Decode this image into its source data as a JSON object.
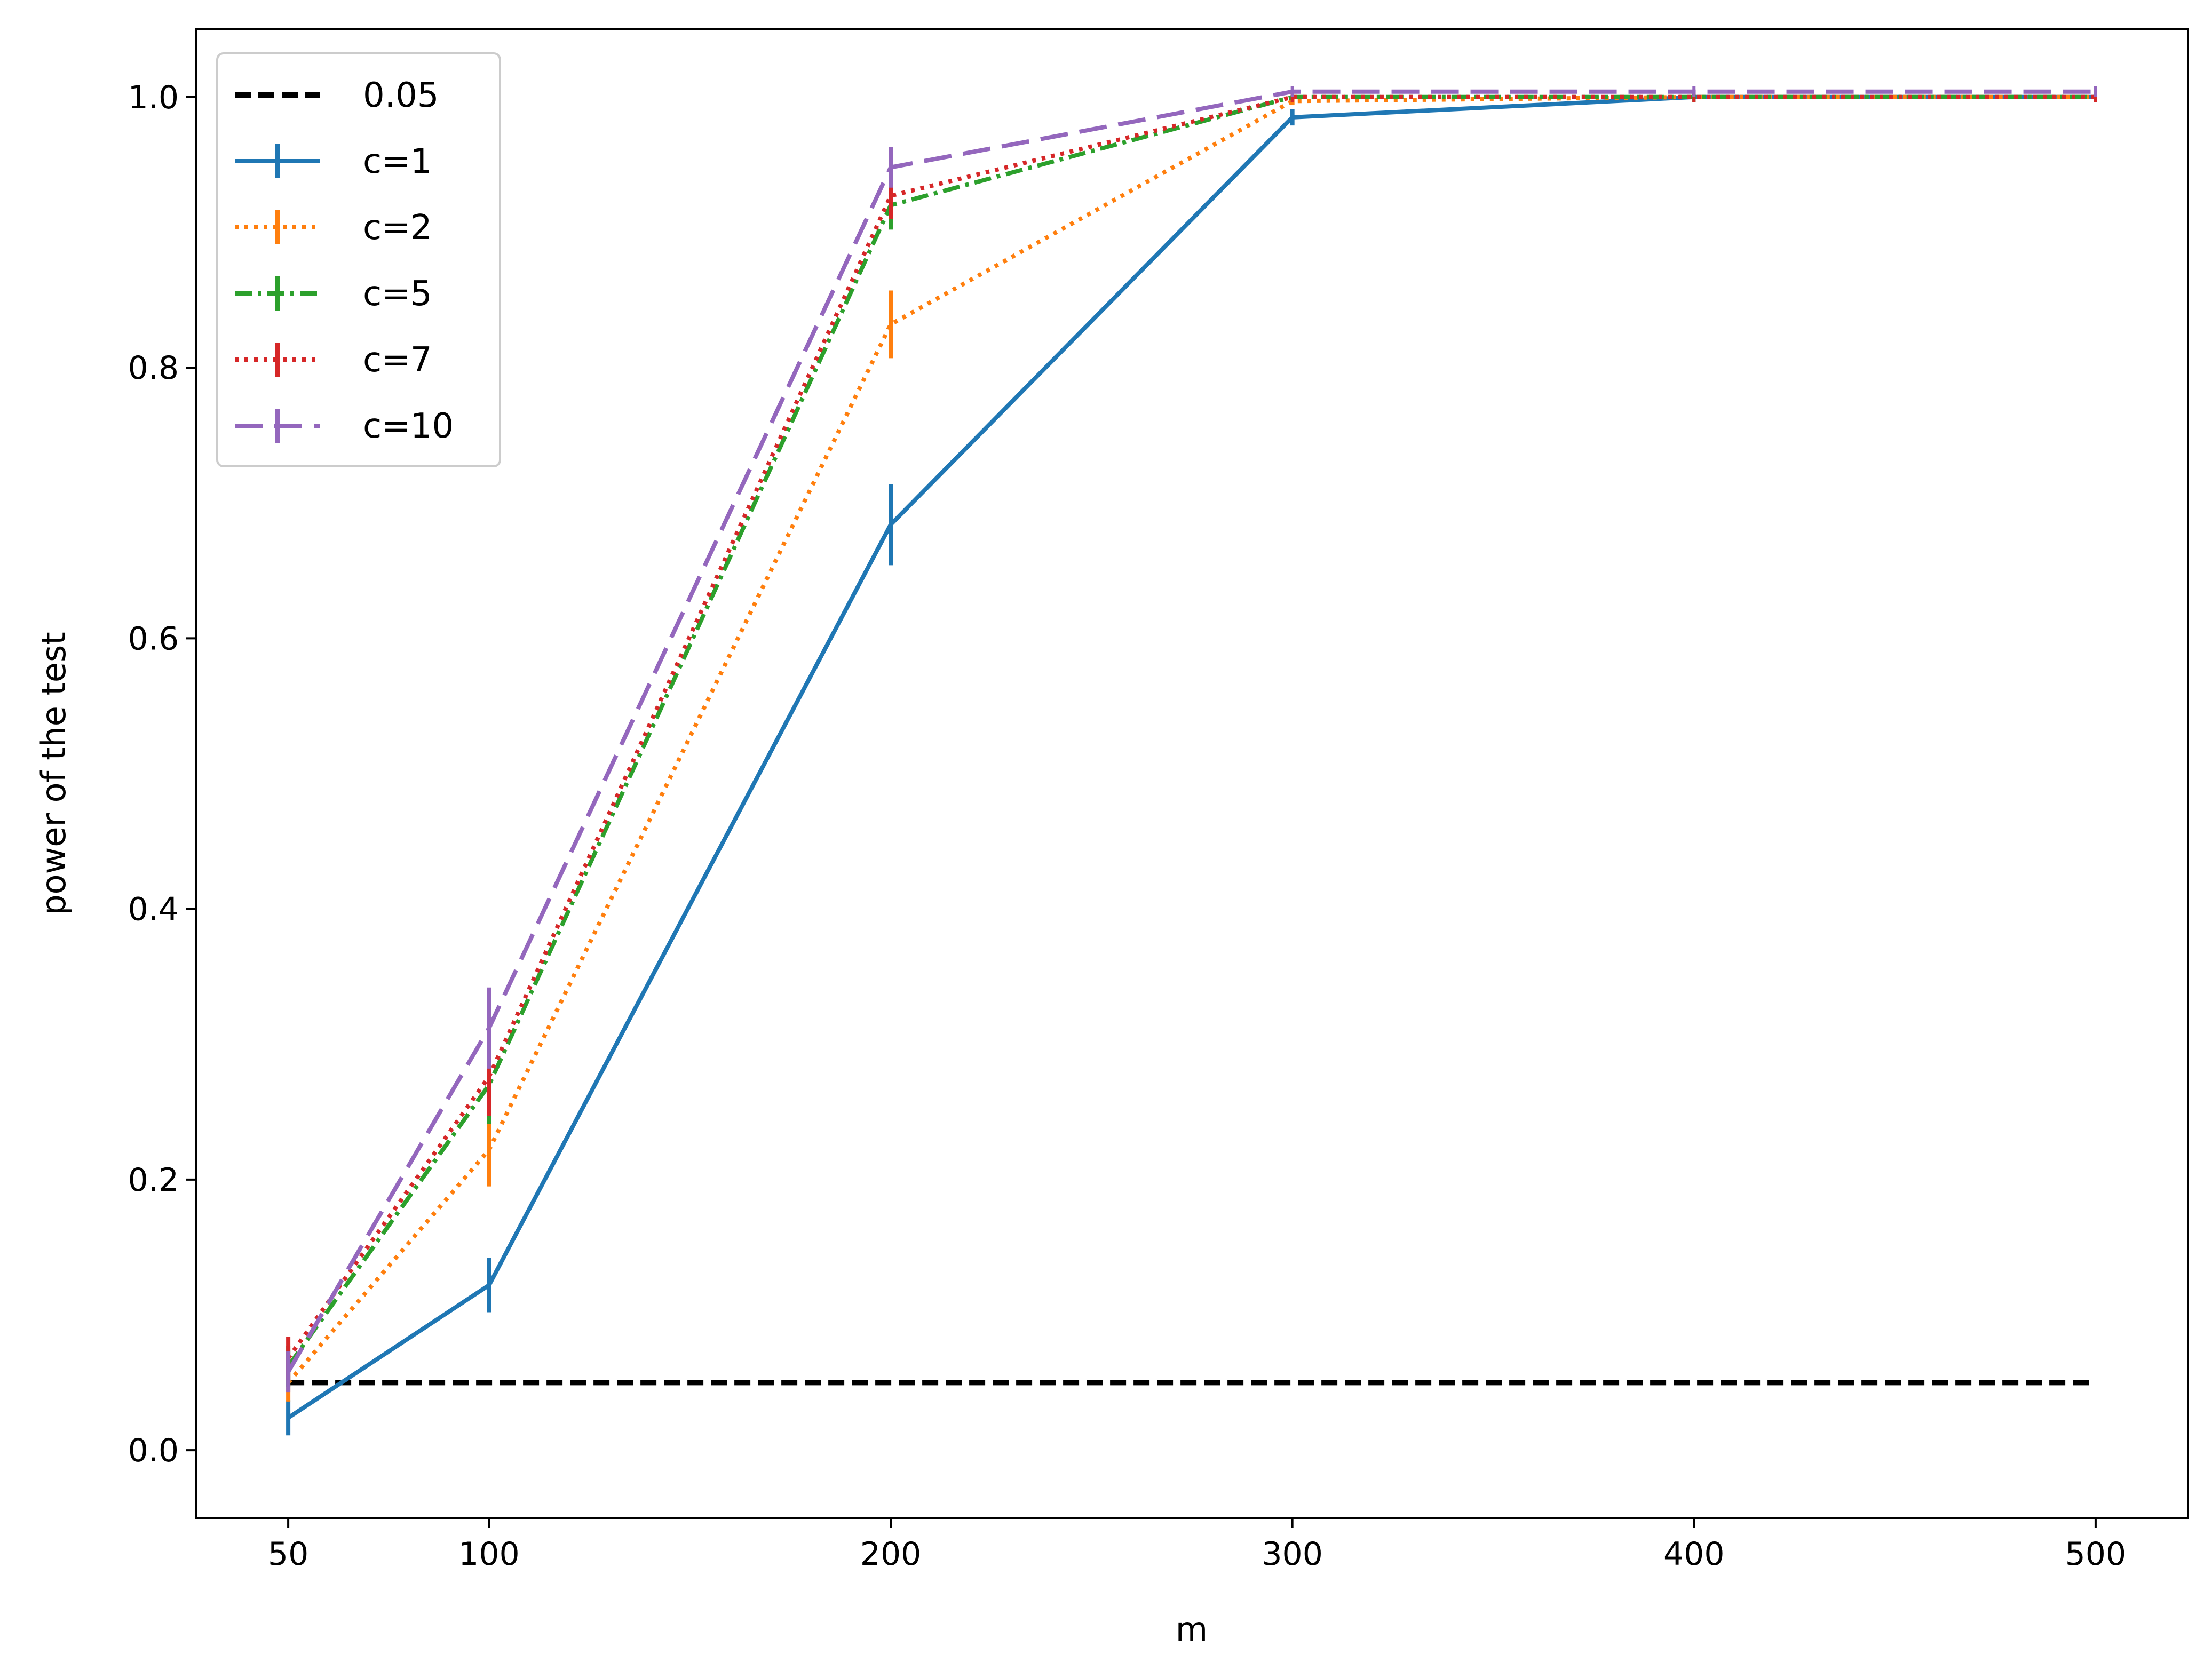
{
  "chart_data": {
    "type": "line",
    "xlabel": "m",
    "ylabel": "power of the test",
    "xlim": [
      27,
      523
    ],
    "ylim": [
      -0.05,
      1.05
    ],
    "xticks": [
      50,
      100,
      200,
      300,
      400,
      500
    ],
    "yticks": [
      0.0,
      0.2,
      0.4,
      0.6,
      0.8,
      1.0
    ],
    "xtick_labels": [
      "50",
      "100",
      "200",
      "300",
      "400",
      "500"
    ],
    "ytick_labels": [
      "0.0",
      "0.2",
      "0.4",
      "0.6",
      "0.8",
      "1.0"
    ],
    "grid": false,
    "legend_position": "upper-left",
    "x": [
      50,
      100,
      200,
      300,
      400,
      500
    ],
    "reference_line": {
      "name": "0.05",
      "value": 0.05,
      "color": "#000000",
      "style": "dashed"
    },
    "series": [
      {
        "name": "c=1",
        "color": "#1f77b4",
        "style": "solid",
        "values": [
          0.024,
          0.122,
          0.684,
          0.985,
          1.0,
          1.0
        ],
        "errors": [
          0.013,
          0.02,
          0.03,
          0.006,
          0.0,
          0.0
        ]
      },
      {
        "name": "c=2",
        "color": "#ff7f0e",
        "style": "dotted",
        "values": [
          0.05,
          0.222,
          0.832,
          0.997,
          1.0,
          1.0
        ],
        "errors": [
          0.014,
          0.027,
          0.025,
          0.003,
          0.0,
          0.0
        ]
      },
      {
        "name": "c=5",
        "color": "#2ca02c",
        "style": "dashdot",
        "values": [
          0.062,
          0.27,
          0.92,
          1.0,
          1.0,
          1.0
        ],
        "errors": [
          0.015,
          0.029,
          0.018,
          0.0,
          0.0,
          0.0
        ]
      },
      {
        "name": "c=7",
        "color": "#d62728",
        "style": "densedot",
        "values": [
          0.068,
          0.276,
          0.927,
          1.0,
          1.0,
          1.0
        ],
        "errors": [
          0.016,
          0.029,
          0.017,
          0.0,
          0.0,
          0.0
        ]
      },
      {
        "name": "c=10",
        "color": "#9467bd",
        "style": "longdash",
        "values": [
          0.058,
          0.312,
          0.948,
          1.004,
          1.004,
          1.004
        ],
        "errors": [
          0.015,
          0.03,
          0.015,
          0.0,
          0.0,
          0.0
        ]
      }
    ]
  }
}
